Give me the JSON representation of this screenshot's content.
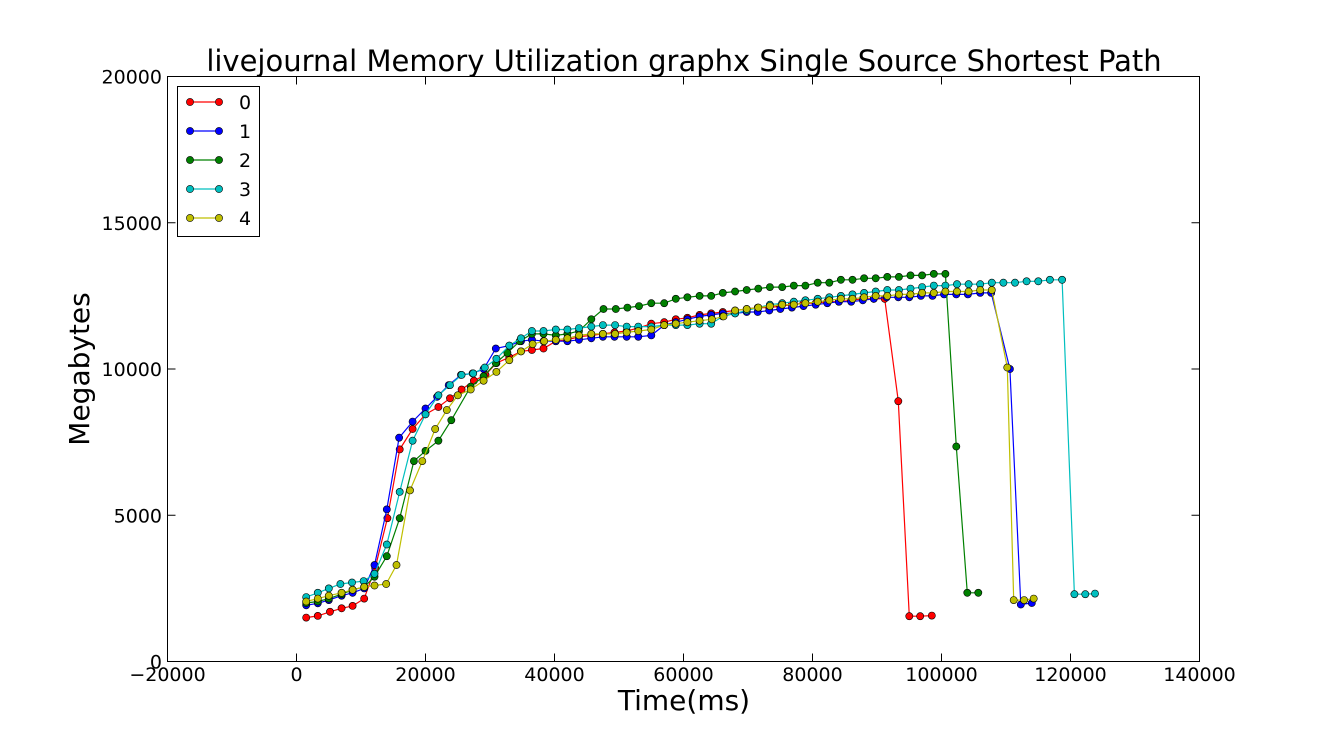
{
  "chart_data": {
    "type": "line",
    "title": "livejournal Memory Utilization graphx Single Source Shortest Path",
    "xlabel": "Time(ms)",
    "ylabel": "Megabytes",
    "xlim": [
      -20000,
      140000
    ],
    "ylim": [
      0,
      20000
    ],
    "xticks": [
      -20000,
      0,
      20000,
      40000,
      60000,
      80000,
      100000,
      120000,
      140000
    ],
    "yticks": [
      0,
      5000,
      10000,
      15000,
      20000
    ],
    "grid": false,
    "legend_position": "top-left",
    "series": [
      {
        "name": "0",
        "color": "#ff0000",
        "points": [
          [
            1500,
            1500
          ],
          [
            3300,
            1560
          ],
          [
            5200,
            1700
          ],
          [
            7000,
            1820
          ],
          [
            8700,
            1900
          ],
          [
            10500,
            2150
          ],
          [
            12200,
            3200
          ],
          [
            14100,
            4900
          ],
          [
            16000,
            7250
          ],
          [
            18000,
            7950
          ],
          [
            20000,
            8450
          ],
          [
            22000,
            8700
          ],
          [
            23800,
            9000
          ],
          [
            25600,
            9300
          ],
          [
            27500,
            9600
          ],
          [
            29300,
            9800
          ],
          [
            31000,
            10200
          ],
          [
            33000,
            10400
          ],
          [
            34800,
            10600
          ],
          [
            36500,
            10650
          ],
          [
            38300,
            10700
          ],
          [
            40200,
            10950
          ],
          [
            42000,
            11000
          ],
          [
            43800,
            11100
          ],
          [
            45700,
            11150
          ],
          [
            47500,
            11200
          ],
          [
            49300,
            11250
          ],
          [
            51200,
            11300
          ],
          [
            53000,
            11400
          ],
          [
            55000,
            11550
          ],
          [
            57000,
            11600
          ],
          [
            58800,
            11700
          ],
          [
            60600,
            11750
          ],
          [
            62500,
            11850
          ],
          [
            64300,
            11900
          ],
          [
            66100,
            11950
          ],
          [
            68000,
            12000
          ],
          [
            69800,
            12050
          ],
          [
            71500,
            12100
          ],
          [
            73300,
            12100
          ],
          [
            75000,
            12150
          ],
          [
            76800,
            12200
          ],
          [
            78600,
            12250
          ],
          [
            80500,
            12250
          ],
          [
            82300,
            12300
          ],
          [
            84100,
            12300
          ],
          [
            86000,
            12350
          ],
          [
            87800,
            12400
          ],
          [
            89500,
            12400
          ],
          [
            91200,
            12400
          ],
          [
            93300,
            8900
          ],
          [
            95000,
            1550
          ],
          [
            96700,
            1550
          ],
          [
            98500,
            1570
          ]
        ]
      },
      {
        "name": "1",
        "color": "#0000ff",
        "points": [
          [
            1500,
            1920
          ],
          [
            3300,
            1990
          ],
          [
            5000,
            2100
          ],
          [
            7000,
            2250
          ],
          [
            8700,
            2350
          ],
          [
            10500,
            2500
          ],
          [
            12100,
            3300
          ],
          [
            14000,
            5200
          ],
          [
            15900,
            7650
          ],
          [
            18000,
            8200
          ],
          [
            20000,
            8650
          ],
          [
            21800,
            9050
          ],
          [
            23600,
            9450
          ],
          [
            25500,
            9800
          ],
          [
            27300,
            9850
          ],
          [
            29000,
            10000
          ],
          [
            30900,
            10700
          ],
          [
            33000,
            10800
          ],
          [
            34800,
            10950
          ],
          [
            36500,
            11000
          ],
          [
            38300,
            10950
          ],
          [
            40200,
            10950
          ],
          [
            42000,
            10950
          ],
          [
            43800,
            11000
          ],
          [
            45700,
            11050
          ],
          [
            47500,
            11100
          ],
          [
            49300,
            11100
          ],
          [
            51200,
            11100
          ],
          [
            53000,
            11100
          ],
          [
            55000,
            11150
          ],
          [
            57000,
            11500
          ],
          [
            58800,
            11600
          ],
          [
            60600,
            11700
          ],
          [
            62500,
            11800
          ],
          [
            64300,
            11850
          ],
          [
            66100,
            11900
          ],
          [
            68000,
            11900
          ],
          [
            69800,
            11950
          ],
          [
            71500,
            11950
          ],
          [
            73300,
            12000
          ],
          [
            75000,
            12050
          ],
          [
            76800,
            12100
          ],
          [
            78600,
            12150
          ],
          [
            80500,
            12200
          ],
          [
            82300,
            12250
          ],
          [
            84100,
            12300
          ],
          [
            86000,
            12300
          ],
          [
            87800,
            12350
          ],
          [
            89500,
            12400
          ],
          [
            91500,
            12450
          ],
          [
            93300,
            12450
          ],
          [
            95000,
            12450
          ],
          [
            96800,
            12500
          ],
          [
            98600,
            12500
          ],
          [
            100400,
            12550
          ],
          [
            102300,
            12550
          ],
          [
            104100,
            12550
          ],
          [
            106000,
            12600
          ],
          [
            107700,
            12600
          ],
          [
            110600,
            10000
          ],
          [
            112300,
            1950
          ],
          [
            114000,
            2000
          ]
        ]
      },
      {
        "name": "2",
        "color": "#008000",
        "points": [
          [
            1500,
            2000
          ],
          [
            3300,
            2050
          ],
          [
            5000,
            2150
          ],
          [
            7000,
            2300
          ],
          [
            8700,
            2450
          ],
          [
            10500,
            2550
          ],
          [
            12100,
            2900
          ],
          [
            14000,
            3600
          ],
          [
            16000,
            4900
          ],
          [
            18200,
            6850
          ],
          [
            20000,
            7200
          ],
          [
            22000,
            7550
          ],
          [
            24000,
            8250
          ],
          [
            27000,
            9400
          ],
          [
            29000,
            9750
          ],
          [
            30900,
            10200
          ],
          [
            32700,
            10550
          ],
          [
            34600,
            10950
          ],
          [
            36500,
            11200
          ],
          [
            38300,
            11200
          ],
          [
            40200,
            11150
          ],
          [
            42000,
            11200
          ],
          [
            43800,
            11300
          ],
          [
            45700,
            11700
          ],
          [
            47600,
            12050
          ],
          [
            49500,
            12050
          ],
          [
            51300,
            12100
          ],
          [
            53100,
            12150
          ],
          [
            55000,
            12250
          ],
          [
            57000,
            12250
          ],
          [
            58800,
            12400
          ],
          [
            60600,
            12450
          ],
          [
            62500,
            12500
          ],
          [
            64300,
            12500
          ],
          [
            66100,
            12600
          ],
          [
            68000,
            12650
          ],
          [
            69800,
            12700
          ],
          [
            71600,
            12750
          ],
          [
            73400,
            12800
          ],
          [
            75300,
            12800
          ],
          [
            77100,
            12850
          ],
          [
            78900,
            12850
          ],
          [
            80800,
            12950
          ],
          [
            82600,
            12950
          ],
          [
            84400,
            13050
          ],
          [
            86200,
            13050
          ],
          [
            88000,
            13100
          ],
          [
            89800,
            13100
          ],
          [
            91600,
            13150
          ],
          [
            93400,
            13150
          ],
          [
            95200,
            13200
          ],
          [
            97000,
            13200
          ],
          [
            98800,
            13250
          ],
          [
            100600,
            13250
          ],
          [
            102300,
            7350
          ],
          [
            104000,
            2350
          ],
          [
            105700,
            2350
          ]
        ]
      },
      {
        "name": "3",
        "color": "#00bfbf",
        "points": [
          [
            1500,
            2200
          ],
          [
            3300,
            2350
          ],
          [
            5000,
            2500
          ],
          [
            6800,
            2650
          ],
          [
            8600,
            2700
          ],
          [
            10400,
            2750
          ],
          [
            12100,
            3000
          ],
          [
            14000,
            4000
          ],
          [
            16000,
            5800
          ],
          [
            18000,
            7550
          ],
          [
            20000,
            8450
          ],
          [
            22000,
            9100
          ],
          [
            23800,
            9450
          ],
          [
            25600,
            9800
          ],
          [
            27400,
            9850
          ],
          [
            29200,
            10050
          ],
          [
            31000,
            10350
          ],
          [
            33000,
            10800
          ],
          [
            34800,
            11050
          ],
          [
            36500,
            11300
          ],
          [
            38300,
            11300
          ],
          [
            40200,
            11350
          ],
          [
            42000,
            11350
          ],
          [
            43800,
            11400
          ],
          [
            45700,
            11450
          ],
          [
            47500,
            11500
          ],
          [
            49400,
            11500
          ],
          [
            51200,
            11450
          ],
          [
            53000,
            11450
          ],
          [
            55000,
            11450
          ],
          [
            57000,
            11500
          ],
          [
            58800,
            11500
          ],
          [
            60600,
            11500
          ],
          [
            62500,
            11550
          ],
          [
            64300,
            11550
          ],
          [
            66100,
            11800
          ],
          [
            68000,
            11900
          ],
          [
            69800,
            12000
          ],
          [
            71600,
            12100
          ],
          [
            73400,
            12200
          ],
          [
            75300,
            12250
          ],
          [
            77100,
            12300
          ],
          [
            78900,
            12350
          ],
          [
            80800,
            12400
          ],
          [
            82600,
            12450
          ],
          [
            84400,
            12500
          ],
          [
            86200,
            12550
          ],
          [
            88000,
            12600
          ],
          [
            89800,
            12650
          ],
          [
            91600,
            12700
          ],
          [
            93400,
            12700
          ],
          [
            95200,
            12750
          ],
          [
            97000,
            12800
          ],
          [
            98800,
            12850
          ],
          [
            100600,
            12850
          ],
          [
            102400,
            12900
          ],
          [
            104200,
            12900
          ],
          [
            106000,
            12900
          ],
          [
            107800,
            12950
          ],
          [
            109600,
            12950
          ],
          [
            111400,
            12950
          ],
          [
            113200,
            13000
          ],
          [
            115000,
            13000
          ],
          [
            116800,
            13050
          ],
          [
            118700,
            13050
          ],
          [
            120600,
            2300
          ],
          [
            122300,
            2300
          ],
          [
            123800,
            2320
          ]
        ]
      },
      {
        "name": "4",
        "color": "#bfbf00",
        "points": [
          [
            1500,
            2050
          ],
          [
            3300,
            2150
          ],
          [
            5000,
            2250
          ],
          [
            7000,
            2350
          ],
          [
            8700,
            2450
          ],
          [
            10500,
            2550
          ],
          [
            12100,
            2600
          ],
          [
            13900,
            2650
          ],
          [
            15500,
            3300
          ],
          [
            17600,
            5850
          ],
          [
            19500,
            6850
          ],
          [
            21500,
            7950
          ],
          [
            23300,
            8600
          ],
          [
            25000,
            9100
          ],
          [
            27000,
            9300
          ],
          [
            29000,
            9600
          ],
          [
            31000,
            9900
          ],
          [
            33000,
            10300
          ],
          [
            34800,
            10600
          ],
          [
            36600,
            10850
          ],
          [
            38400,
            10950
          ],
          [
            40200,
            11000
          ],
          [
            42000,
            11050
          ],
          [
            43800,
            11150
          ],
          [
            45700,
            11200
          ],
          [
            47500,
            11200
          ],
          [
            49400,
            11200
          ],
          [
            51200,
            11250
          ],
          [
            53000,
            11300
          ],
          [
            55000,
            11350
          ],
          [
            57000,
            11500
          ],
          [
            58800,
            11550
          ],
          [
            60600,
            11600
          ],
          [
            62500,
            11650
          ],
          [
            64400,
            11700
          ],
          [
            66200,
            11800
          ],
          [
            68000,
            12000
          ],
          [
            69800,
            12050
          ],
          [
            71600,
            12100
          ],
          [
            73400,
            12150
          ],
          [
            75300,
            12200
          ],
          [
            77100,
            12200
          ],
          [
            78900,
            12250
          ],
          [
            80800,
            12300
          ],
          [
            82600,
            12350
          ],
          [
            84400,
            12400
          ],
          [
            86200,
            12400
          ],
          [
            88000,
            12450
          ],
          [
            89800,
            12500
          ],
          [
            91600,
            12500
          ],
          [
            93400,
            12550
          ],
          [
            95200,
            12550
          ],
          [
            97000,
            12600
          ],
          [
            98800,
            12600
          ],
          [
            100600,
            12650
          ],
          [
            102400,
            12650
          ],
          [
            104200,
            12650
          ],
          [
            106000,
            12700
          ],
          [
            107800,
            12700
          ],
          [
            110200,
            10050
          ],
          [
            111200,
            2100
          ],
          [
            112800,
            2100
          ],
          [
            114300,
            2150
          ]
        ]
      }
    ]
  }
}
